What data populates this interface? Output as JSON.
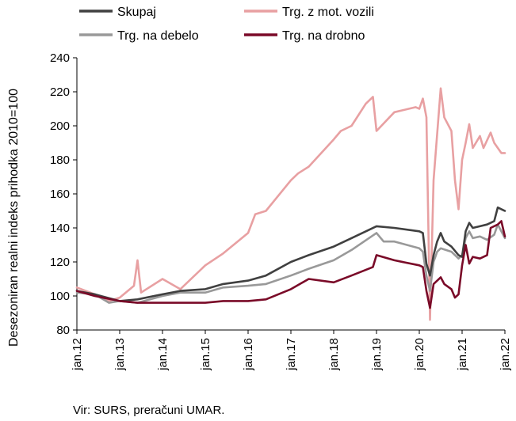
{
  "chart_data": {
    "type": "line",
    "ylabel": "Desezoniran realni indeks prihodka 2010=100",
    "ylim": [
      80,
      240
    ],
    "yticks": [
      80,
      100,
      120,
      140,
      160,
      180,
      200,
      220,
      240
    ],
    "x_start": "2012-01",
    "x_end": "2022-01",
    "xticks": [
      "jan.12",
      "jan.13",
      "jan.14",
      "jan.15",
      "jan.16",
      "jan.17",
      "jan.18",
      "jan.19",
      "jan.20",
      "jan.21",
      "jan.22"
    ],
    "source": "Vir: SURS, preračuni UMAR.",
    "legend_placement": "top",
    "series": [
      {
        "name": "Skupaj",
        "color": "#404040",
        "keypoints": [
          [
            "2012-01",
            103
          ],
          [
            "2012-06",
            101
          ],
          [
            "2013-01",
            97
          ],
          [
            "2013-06",
            98
          ],
          [
            "2014-01",
            101
          ],
          [
            "2014-06",
            103
          ],
          [
            "2015-01",
            104
          ],
          [
            "2015-06",
            107
          ],
          [
            "2016-01",
            109
          ],
          [
            "2016-06",
            112
          ],
          [
            "2017-01",
            120
          ],
          [
            "2017-06",
            124
          ],
          [
            "2018-01",
            129
          ],
          [
            "2018-06",
            134
          ],
          [
            "2019-01",
            141
          ],
          [
            "2019-06",
            140
          ],
          [
            "2020-01",
            138
          ],
          [
            "2020-02",
            137
          ],
          [
            "2020-03",
            119
          ],
          [
            "2020-04",
            112
          ],
          [
            "2020-05",
            124
          ],
          [
            "2020-06",
            132
          ],
          [
            "2020-07",
            137
          ],
          [
            "2020-08",
            132
          ],
          [
            "2020-10",
            129
          ],
          [
            "2020-12",
            124
          ],
          [
            "2021-01",
            123
          ],
          [
            "2021-02",
            138
          ],
          [
            "2021-03",
            143
          ],
          [
            "2021-04",
            140
          ],
          [
            "2021-06",
            141
          ],
          [
            "2021-08",
            142
          ],
          [
            "2021-10",
            144
          ],
          [
            "2021-11",
            152
          ],
          [
            "2022-01",
            150
          ]
        ]
      },
      {
        "name": "Trg. z mot. vozili",
        "color": "#e8a0a2",
        "keypoints": [
          [
            "2012-01",
            105
          ],
          [
            "2012-06",
            101
          ],
          [
            "2012-10",
            97
          ],
          [
            "2013-01",
            99
          ],
          [
            "2013-05",
            106
          ],
          [
            "2013-06",
            121
          ],
          [
            "2013-07",
            102
          ],
          [
            "2014-01",
            110
          ],
          [
            "2014-06",
            104
          ],
          [
            "2015-01",
            118
          ],
          [
            "2015-06",
            125
          ],
          [
            "2016-01",
            137
          ],
          [
            "2016-03",
            148
          ],
          [
            "2016-06",
            150
          ],
          [
            "2017-01",
            168
          ],
          [
            "2017-03",
            172
          ],
          [
            "2017-06",
            176
          ],
          [
            "2018-01",
            192
          ],
          [
            "2018-03",
            197
          ],
          [
            "2018-06",
            200
          ],
          [
            "2018-10",
            213
          ],
          [
            "2018-12",
            217
          ],
          [
            "2019-01",
            197
          ],
          [
            "2019-06",
            208
          ],
          [
            "2019-12",
            211
          ],
          [
            "2020-01",
            210
          ],
          [
            "2020-02",
            216
          ],
          [
            "2020-03",
            205
          ],
          [
            "2020-04",
            86
          ],
          [
            "2020-05",
            168
          ],
          [
            "2020-07",
            222
          ],
          [
            "2020-08",
            205
          ],
          [
            "2020-10",
            197
          ],
          [
            "2020-11",
            168
          ],
          [
            "2020-12",
            151
          ],
          [
            "2021-01",
            180
          ],
          [
            "2021-02",
            190
          ],
          [
            "2021-03",
            201
          ],
          [
            "2021-04",
            187
          ],
          [
            "2021-06",
            194
          ],
          [
            "2021-07",
            187
          ],
          [
            "2021-09",
            196
          ],
          [
            "2021-10",
            190
          ],
          [
            "2021-12",
            184
          ],
          [
            "2022-01",
            184
          ]
        ]
      },
      {
        "name": "Trg. na debelo",
        "color": "#999999",
        "keypoints": [
          [
            "2012-01",
            102
          ],
          [
            "2012-06",
            101
          ],
          [
            "2012-10",
            96
          ],
          [
            "2013-01",
            97
          ],
          [
            "2013-06",
            96
          ],
          [
            "2014-01",
            100
          ],
          [
            "2014-06",
            102
          ],
          [
            "2015-01",
            102
          ],
          [
            "2015-06",
            105
          ],
          [
            "2016-01",
            106
          ],
          [
            "2016-06",
            107
          ],
          [
            "2017-01",
            112
          ],
          [
            "2017-06",
            116
          ],
          [
            "2018-01",
            121
          ],
          [
            "2018-06",
            127
          ],
          [
            "2019-01",
            137
          ],
          [
            "2019-03",
            132
          ],
          [
            "2019-06",
            132
          ],
          [
            "2020-01",
            128
          ],
          [
            "2020-02",
            126
          ],
          [
            "2020-03",
            112
          ],
          [
            "2020-04",
            103
          ],
          [
            "2020-05",
            120
          ],
          [
            "2020-06",
            126
          ],
          [
            "2020-07",
            128
          ],
          [
            "2020-10",
            126
          ],
          [
            "2020-12",
            122
          ],
          [
            "2021-01",
            124
          ],
          [
            "2021-02",
            134
          ],
          [
            "2021-03",
            138
          ],
          [
            "2021-04",
            134
          ],
          [
            "2021-06",
            135
          ],
          [
            "2021-08",
            133
          ],
          [
            "2021-10",
            136
          ],
          [
            "2021-11",
            142
          ],
          [
            "2022-01",
            134
          ]
        ]
      },
      {
        "name": "Trg. na drobno",
        "color": "#7a0a28",
        "keypoints": [
          [
            "2012-01",
            103
          ],
          [
            "2012-06",
            100
          ],
          [
            "2013-01",
            97
          ],
          [
            "2013-06",
            96
          ],
          [
            "2014-01",
            96
          ],
          [
            "2014-06",
            96
          ],
          [
            "2015-01",
            96
          ],
          [
            "2015-06",
            97
          ],
          [
            "2016-01",
            97
          ],
          [
            "2016-06",
            98
          ],
          [
            "2017-01",
            104
          ],
          [
            "2017-06",
            110
          ],
          [
            "2018-01",
            108
          ],
          [
            "2018-06",
            112
          ],
          [
            "2018-12",
            117
          ],
          [
            "2019-01",
            124
          ],
          [
            "2019-06",
            121
          ],
          [
            "2020-01",
            118
          ],
          [
            "2020-02",
            117
          ],
          [
            "2020-03",
            103
          ],
          [
            "2020-04",
            93
          ],
          [
            "2020-05",
            107
          ],
          [
            "2020-07",
            111
          ],
          [
            "2020-08",
            107
          ],
          [
            "2020-10",
            104
          ],
          [
            "2020-11",
            99
          ],
          [
            "2020-12",
            101
          ],
          [
            "2021-01",
            118
          ],
          [
            "2021-02",
            130
          ],
          [
            "2021-03",
            119
          ],
          [
            "2021-04",
            123
          ],
          [
            "2021-06",
            122
          ],
          [
            "2021-08",
            124
          ],
          [
            "2021-09",
            140
          ],
          [
            "2021-11",
            142
          ],
          [
            "2021-12",
            144
          ],
          [
            "2022-01",
            135
          ]
        ]
      }
    ]
  }
}
